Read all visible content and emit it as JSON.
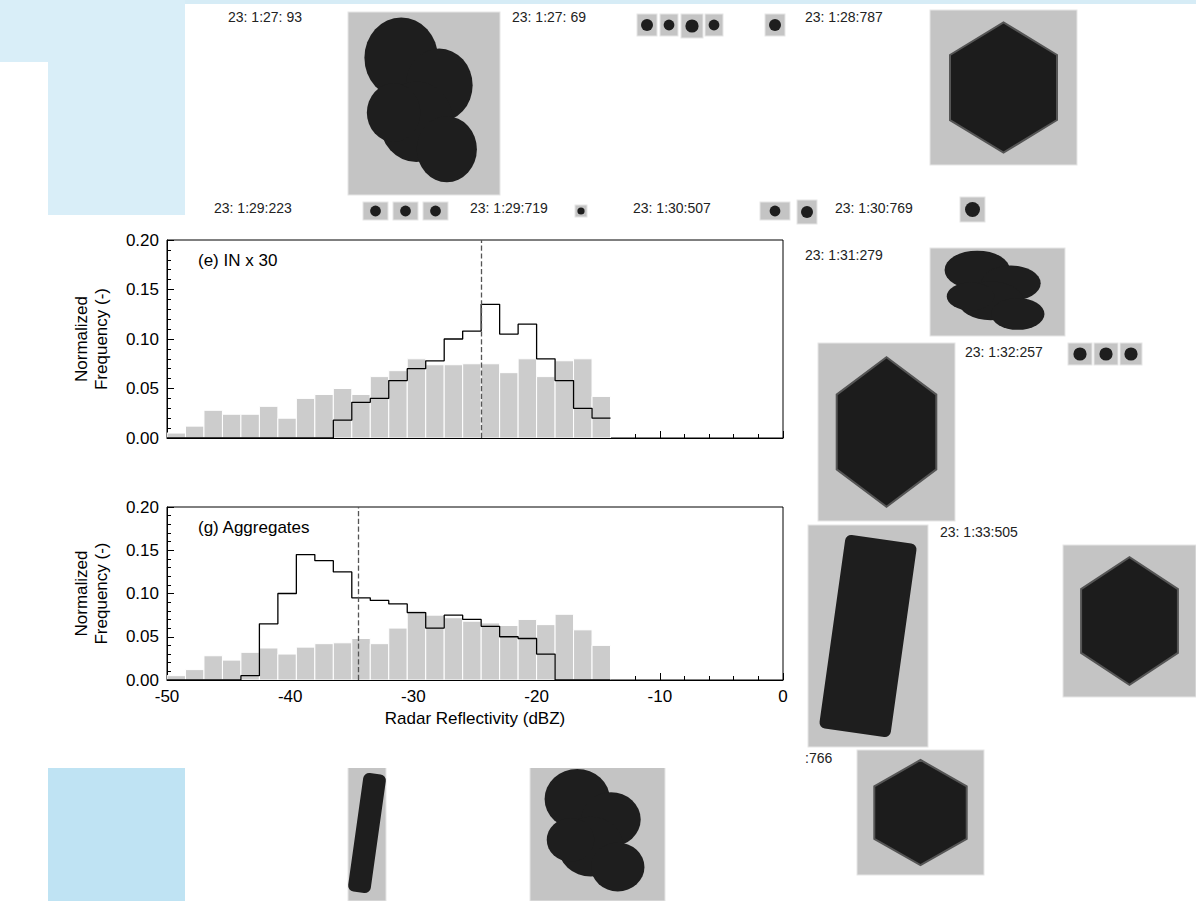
{
  "chart_data": [
    {
      "type": "histogram",
      "title": "(e) IN x 30",
      "ylabel": "Normalized Frequency (-)",
      "bins": [
        -50,
        -48.5,
        -47,
        -45.5,
        -44,
        -42.5,
        -41,
        -39.5,
        -38,
        -36.5,
        -35,
        -33.5,
        -32,
        -30.5,
        -29,
        -27.5,
        -26,
        -24.5,
        -23,
        -21.5,
        -20,
        -18.5,
        -17,
        -15.5,
        -14
      ],
      "series": [
        {
          "type": "bar",
          "color": "#cccccc",
          "values": [
            0.005,
            0.012,
            0.028,
            0.024,
            0.024,
            0.032,
            0.02,
            0.04,
            0.044,
            0.05,
            0.044,
            0.062,
            0.068,
            0.08,
            0.074,
            0.074,
            0.075,
            0.075,
            0.066,
            0.08,
            0.062,
            0.078,
            0.08,
            0.042
          ]
        },
        {
          "type": "line",
          "line_style": "step",
          "color": "#000000",
          "values": [
            0,
            0,
            0,
            0,
            0,
            0,
            0,
            0,
            0,
            0.018,
            0.036,
            0.04,
            0.058,
            0.07,
            0.078,
            0.1,
            0.108,
            0.135,
            0.105,
            0.115,
            0.08,
            0.058,
            0.03,
            0.02
          ]
        }
      ],
      "median": -24.5,
      "xlim": [
        -50,
        0
      ],
      "xticks": [
        -50,
        -40,
        -30,
        -20,
        -10,
        0
      ],
      "ylim": [
        0,
        0.2
      ],
      "yticks": [
        {
          "value": 0,
          "label": "0.00"
        },
        {
          "value": 0.05,
          "label": "0.05"
        },
        {
          "value": 0.1,
          "label": "0.10"
        },
        {
          "value": 0.15,
          "label": "0.15"
        },
        {
          "value": 0.2,
          "label": "0.20"
        }
      ],
      "grid": false,
      "tick_labels": "y"
    },
    {
      "type": "histogram",
      "title": "(g) Aggregates",
      "xlabel": "Radar Reflectivity (dBZ)",
      "ylabel": "Normalized Frequency (-)",
      "bins": [
        -50,
        -48.5,
        -47,
        -45.5,
        -44,
        -42.5,
        -41,
        -39.5,
        -38,
        -36.5,
        -35,
        -33.5,
        -32,
        -30.5,
        -29,
        -27.5,
        -26,
        -24.5,
        -23,
        -21.5,
        -20,
        -18.5,
        -17,
        -15.5,
        -14
      ],
      "series": [
        {
          "type": "bar",
          "color": "#cccccc",
          "values": [
            0.005,
            0.012,
            0.028,
            0.023,
            0.032,
            0.037,
            0.03,
            0.038,
            0.042,
            0.043,
            0.048,
            0.042,
            0.06,
            0.08,
            0.075,
            0.072,
            0.068,
            0.066,
            0.063,
            0.07,
            0.064,
            0.076,
            0.058,
            0.04
          ]
        },
        {
          "type": "line",
          "line_style": "step",
          "color": "#000000",
          "values": [
            0,
            0,
            0,
            0,
            0.005,
            0.065,
            0.1,
            0.145,
            0.138,
            0.125,
            0.095,
            0.092,
            0.088,
            0.078,
            0.06,
            0.075,
            0.07,
            0.062,
            0.05,
            0.048,
            0.03,
            0,
            0,
            0
          ]
        }
      ],
      "median": -34.5,
      "xlim": [
        -50,
        0
      ],
      "xticks": [
        -50,
        -40,
        -30,
        -20,
        -10,
        0
      ],
      "ylim": [
        0,
        0.2
      ],
      "yticks": [
        {
          "value": 0,
          "label": "0.00"
        },
        {
          "value": 0.05,
          "label": "0.05"
        },
        {
          "value": 0.1,
          "label": "0.10"
        },
        {
          "value": 0.15,
          "label": "0.15"
        },
        {
          "value": 0.2,
          "label": "0.20"
        }
      ],
      "grid": false
    }
  ],
  "background": {
    "image_labels": [
      "23: 1:27: 93",
      "23: 1:27: 69",
      "23: 1:28:787",
      "23: 1:29:223",
      "23: 1:29:719",
      "23: 1:30:507",
      "23: 1:30:769",
      "23: 1:31:279",
      "23: 1:32:257",
      "23: 1:33:505",
      ":766"
    ]
  }
}
